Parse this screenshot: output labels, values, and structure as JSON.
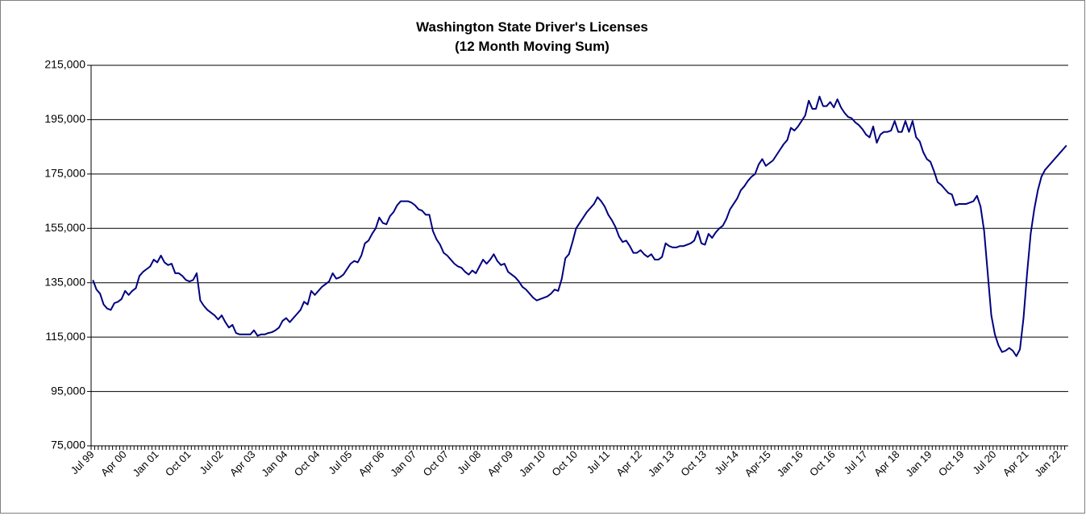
{
  "chart_data": {
    "type": "line",
    "title": "Washington State Driver's Licenses",
    "subtitle": "(12 Month Moving Sum)",
    "categories": [
      "Jul 99",
      null,
      null,
      null,
      null,
      null,
      null,
      null,
      null,
      "Apr 00",
      null,
      null,
      null,
      null,
      null,
      null,
      null,
      null,
      "Jan 01",
      null,
      null,
      null,
      null,
      null,
      null,
      null,
      null,
      "Oct 01",
      null,
      null,
      null,
      null,
      null,
      null,
      null,
      null,
      "Jul 02",
      null,
      null,
      null,
      null,
      null,
      null,
      null,
      null,
      "Apr 03",
      null,
      null,
      null,
      null,
      null,
      null,
      null,
      null,
      "Jan 04",
      null,
      null,
      null,
      null,
      null,
      null,
      null,
      null,
      "Oct 04",
      null,
      null,
      null,
      null,
      null,
      null,
      null,
      null,
      "Jul 05",
      null,
      null,
      null,
      null,
      null,
      null,
      null,
      null,
      "Apr 06",
      null,
      null,
      null,
      null,
      null,
      null,
      null,
      null,
      "Jan 07",
      null,
      null,
      null,
      null,
      null,
      null,
      null,
      null,
      "Oct 07",
      null,
      null,
      null,
      null,
      null,
      null,
      null,
      null,
      "Jul 08",
      null,
      null,
      null,
      null,
      null,
      null,
      null,
      null,
      "Apr 09",
      null,
      null,
      null,
      null,
      null,
      null,
      null,
      null,
      "Jan 10",
      null,
      null,
      null,
      null,
      null,
      null,
      null,
      null,
      "Oct 10",
      null,
      null,
      null,
      null,
      null,
      null,
      null,
      null,
      "Jul 11",
      null,
      null,
      null,
      null,
      null,
      null,
      null,
      null,
      "Apr 12",
      null,
      null,
      null,
      null,
      null,
      null,
      null,
      null,
      "Jan 13",
      null,
      null,
      null,
      null,
      null,
      null,
      null,
      null,
      "Oct 13",
      null,
      null,
      null,
      null,
      null,
      null,
      null,
      null,
      "Jul-14",
      null,
      null,
      null,
      null,
      null,
      null,
      null,
      null,
      "Apr-15",
      null,
      null,
      null,
      null,
      null,
      null,
      null,
      null,
      "Jan 16",
      null,
      null,
      null,
      null,
      null,
      null,
      null,
      null,
      "Oct 16",
      null,
      null,
      null,
      null,
      null,
      null,
      null,
      null,
      "Jul 17",
      null,
      null,
      null,
      null,
      null,
      null,
      null,
      null,
      "Apr 18",
      null,
      null,
      null,
      null,
      null,
      null,
      null,
      null,
      "Jan 19",
      null,
      null,
      null,
      null,
      null,
      null,
      null,
      null,
      "Oct 19",
      null,
      null,
      null,
      null,
      null,
      null,
      null,
      null,
      "Jul 20",
      null,
      null,
      null,
      null,
      null,
      null,
      null,
      null,
      "Apr 21",
      null,
      null,
      null,
      null,
      null,
      null,
      null,
      null,
      "Jan 22",
      null,
      null
    ],
    "series": [
      {
        "name": "Driver's Licenses",
        "color": "#000080",
        "values": [
          136000,
          132500,
          131000,
          127000,
          125500,
          125000,
          127500,
          128000,
          129000,
          132000,
          130500,
          132000,
          133000,
          137500,
          139000,
          140000,
          141000,
          143500,
          142500,
          145000,
          142500,
          141500,
          142000,
          138500,
          138500,
          137500,
          136000,
          135500,
          136000,
          138500,
          128500,
          126500,
          125000,
          124000,
          123000,
          121500,
          123000,
          120500,
          118500,
          119500,
          116500,
          116000,
          116000,
          116000,
          116000,
          117500,
          115500,
          116000,
          116000,
          116500,
          116800,
          117500,
          118500,
          121000,
          122000,
          120500,
          122000,
          123500,
          125000,
          128000,
          127000,
          132000,
          130500,
          132000,
          133500,
          134500,
          135500,
          138500,
          136500,
          137000,
          138000,
          140000,
          142000,
          143000,
          142500,
          145000,
          149500,
          150500,
          153000,
          155000,
          159000,
          157000,
          156500,
          159500,
          161000,
          163500,
          165000,
          165000,
          165000,
          164500,
          163500,
          162000,
          161500,
          160000,
          160000,
          154000,
          151000,
          149000,
          146000,
          145000,
          143500,
          142000,
          141000,
          140500,
          139000,
          138000,
          139500,
          138500,
          141000,
          143500,
          142000,
          143500,
          145500,
          143000,
          141500,
          142000,
          139000,
          138000,
          137000,
          135500,
          133500,
          132500,
          131000,
          129500,
          128500,
          129000,
          129500,
          130000,
          131000,
          132500,
          132000,
          136500,
          144000,
          145500,
          150000,
          155000,
          157000,
          159000,
          161000,
          162500,
          164000,
          166500,
          165000,
          163000,
          160000,
          158000,
          155500,
          152000,
          150000,
          150500,
          148500,
          146000,
          146000,
          147000,
          145500,
          144500,
          145500,
          143500,
          143500,
          144500,
          149500,
          148500,
          148000,
          148000,
          148500,
          148500,
          149000,
          149500,
          150500,
          154000,
          149500,
          149000,
          153000,
          151500,
          153500,
          155000,
          156000,
          158500,
          162000,
          164000,
          166000,
          169000,
          170500,
          172500,
          174000,
          175000,
          178500,
          180500,
          178000,
          179000,
          180000,
          182000,
          184000,
          186000,
          187500,
          192000,
          191000,
          192500,
          194500,
          196500,
          202000,
          199000,
          199000,
          203500,
          200000,
          200000,
          201500,
          199500,
          202500,
          199500,
          197500,
          196000,
          195500,
          194000,
          193000,
          191500,
          189500,
          188500,
          192500,
          186500,
          189500,
          190500,
          190500,
          191000,
          194500,
          190500,
          190500,
          194500,
          190500,
          194500,
          188500,
          187000,
          183000,
          180500,
          179500,
          176000,
          172000,
          171000,
          169500,
          168000,
          167500,
          163500,
          164000,
          164000,
          164000,
          164500,
          165000,
          167000,
          163000,
          154000,
          138500,
          123000,
          116000,
          112000,
          109500,
          110000,
          111000,
          110000,
          108000,
          110500,
          122000,
          138500,
          153000,
          162000,
          169000,
          174000,
          176500,
          178000,
          179500,
          181000,
          182500,
          184000,
          185500
        ]
      }
    ],
    "ylim": [
      75000,
      215000
    ],
    "yticks": [
      {
        "value": 75000,
        "label": "75,000"
      },
      {
        "value": 95000,
        "label": "95,000"
      },
      {
        "value": 115000,
        "label": "115,000"
      },
      {
        "value": 135000,
        "label": "135,000"
      },
      {
        "value": 155000,
        "label": "155,000"
      },
      {
        "value": 175000,
        "label": "175,000"
      },
      {
        "value": 195000,
        "label": "195,000"
      },
      {
        "value": 215000,
        "label": "215,000"
      }
    ],
    "grid": true
  }
}
